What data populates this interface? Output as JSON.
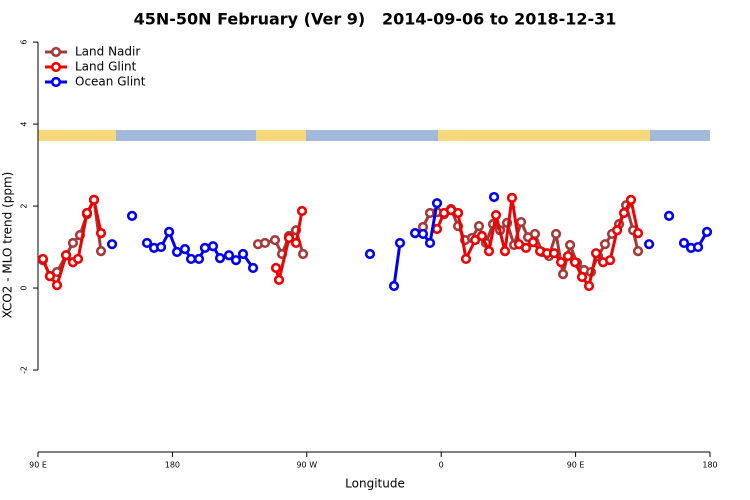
{
  "chart_data": {
    "type": "line",
    "title": "45N-50N February (Ver 9)   2014-09-06 to 2018-12-31",
    "xlabel": "Longitude",
    "ylabel": "XCO2 - MLO trend (ppm)",
    "xlim": [
      90,
      540
    ],
    "ylim": [
      -4,
      6.1
    ],
    "xticks": [
      {
        "value": 90,
        "label": "90 E"
      },
      {
        "value": 180,
        "label": "180"
      },
      {
        "value": 270,
        "label": "90 W"
      },
      {
        "value": 360,
        "label": "0"
      },
      {
        "value": 450,
        "label": "90 E"
      },
      {
        "value": 540,
        "label": "180"
      }
    ],
    "yticks": [
      -2,
      0,
      2,
      4,
      6
    ],
    "legend": "top-left",
    "series": [
      {
        "name": "Land Nadir",
        "color": "#a33a3a",
        "x": [
          93.3,
          98.0,
          102.7,
          108.8,
          113.4,
          118.1,
          122.8,
          127.5,
          132.2,
          null,
          237.3,
          242.0,
          248.7,
          253.4,
          258.1,
          262.8,
          267.5,
          null,
          347.8,
          352.5,
          357.2,
          361.9,
          366.6,
          371.3,
          376.0,
          380.6,
          385.3,
          390.0,
          394.7,
          399.4,
          404.1,
          408.8,
          413.5,
          418.2,
          422.8,
          427.5,
          432.2,
          436.9,
          441.6,
          446.3,
          451.0,
          455.7,
          460.3,
          465.0,
          469.7,
          474.4,
          479.1,
          483.8,
          488.5,
          491.8
        ],
        "values": [
          0.68,
          0.29,
          0.39,
          0.8,
          1.1,
          1.29,
          1.8,
          2.15,
          0.9,
          null,
          1.07,
          1.1,
          1.17,
          0.83,
          1.27,
          1.41,
          0.83,
          null,
          1.49,
          1.83,
          1.85,
          1.8,
          1.93,
          1.51,
          1.17,
          1.22,
          1.51,
          1.1,
          1.56,
          1.41,
          1.59,
          1.05,
          1.61,
          1.24,
          1.32,
          0.88,
          0.78,
          1.32,
          0.34,
          1.05,
          0.61,
          0.44,
          0.39,
          0.78,
          1.07,
          1.32,
          1.56,
          2.02,
          1.41,
          0.9
        ]
      },
      {
        "name": "Land Glint",
        "color": "#ee0000",
        "x": [
          93.3,
          98.0,
          102.7,
          108.8,
          113.4,
          116.8,
          122.8,
          127.5,
          132.2,
          null,
          249.4,
          251.4,
          258.1,
          262.8,
          266.8,
          null,
          357.2,
          361.9,
          366.6,
          371.3,
          376.6,
          382.7,
          387.3,
          392.0,
          396.7,
          402.7,
          407.4,
          412.1,
          416.8,
          421.5,
          426.2,
          430.9,
          435.6,
          440.3,
          444.9,
          449.6,
          454.3,
          459.0,
          463.7,
          468.4,
          473.1,
          477.8,
          482.4,
          487.1,
          491.8
        ],
        "values": [
          0.71,
          0.29,
          0.07,
          0.8,
          0.63,
          0.71,
          1.83,
          2.15,
          1.34,
          null,
          0.49,
          0.2,
          1.22,
          1.1,
          1.88,
          null,
          1.44,
          1.83,
          1.9,
          1.83,
          0.71,
          1.17,
          1.27,
          0.9,
          1.78,
          0.9,
          2.2,
          1.07,
          0.98,
          1.12,
          0.9,
          0.85,
          0.85,
          0.63,
          0.78,
          0.63,
          0.27,
          0.05,
          0.85,
          0.63,
          0.68,
          1.41,
          1.83,
          2.15,
          1.34
        ]
      },
      {
        "name": "Ocean Glint",
        "color": "#0000ee",
        "x": [
          139.6,
          null,
          153.0,
          null,
          163.0,
          167.7,
          172.4,
          177.8,
          183.1,
          188.4,
          192.5,
          197.8,
          201.8,
          207.2,
          211.9,
          217.9,
          222.6,
          227.3,
          234.0,
          null,
          312.3,
          null,
          328.4,
          332.4,
          null,
          342.5,
          347.8,
          352.5,
          357.2,
          null,
          395.4,
          null,
          499.2,
          null,
          512.6,
          null,
          522.6,
          527.3,
          532.0,
          538.0
        ],
        "values": [
          1.07,
          null,
          1.76,
          null,
          1.1,
          0.98,
          1.0,
          1.37,
          0.88,
          0.95,
          0.71,
          0.71,
          0.98,
          1.02,
          0.73,
          0.8,
          0.68,
          0.83,
          0.49,
          null,
          0.83,
          null,
          0.05,
          1.1,
          null,
          1.34,
          1.32,
          1.1,
          2.07,
          null,
          2.22,
          null,
          1.07,
          null,
          1.76,
          null,
          1.1,
          0.98,
          1.0,
          1.37
        ]
      }
    ]
  }
}
